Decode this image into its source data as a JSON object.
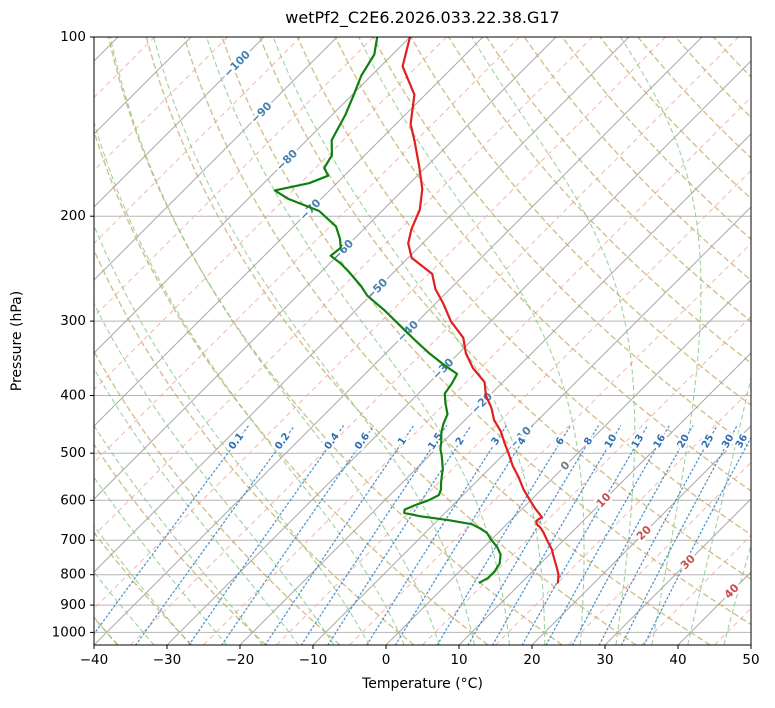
{
  "chart_data": {
    "type": "line",
    "chart_kind": "skew-t-log-p",
    "title": "wetPf2_C2E6.2026.033.22.38.G17",
    "xlabel": "Temperature (°C)",
    "ylabel": "Pressure (hPa)",
    "x_ticks": [
      -40,
      -30,
      -20,
      -10,
      0,
      10,
      20,
      30,
      40,
      50
    ],
    "y_ticks": [
      100,
      200,
      300,
      400,
      500,
      600,
      700,
      800,
      900,
      1000
    ],
    "x_range_bottom_edge_c": [
      -40,
      50
    ],
    "pressure_range_hpa": [
      100,
      1050
    ],
    "skew_degrees": 45,
    "grid": true,
    "series": [
      {
        "name": "temperature",
        "color": "#e01f1f",
        "units": {
          "pressure": "hPa",
          "value": "degC"
        },
        "points": [
          [
            100,
            -80
          ],
          [
            112,
            -77
          ],
          [
            125,
            -71.5
          ],
          [
            140,
            -68
          ],
          [
            150,
            -65
          ],
          [
            165,
            -61
          ],
          [
            180,
            -57.5
          ],
          [
            195,
            -55
          ],
          [
            210,
            -53.5
          ],
          [
            222,
            -52
          ],
          [
            235,
            -49.5
          ],
          [
            250,
            -44.5
          ],
          [
            265,
            -42
          ],
          [
            280,
            -39
          ],
          [
            300,
            -35.5
          ],
          [
            320,
            -31.5
          ],
          [
            340,
            -29
          ],
          [
            360,
            -26
          ],
          [
            380,
            -22.5
          ],
          [
            400,
            -20.5
          ],
          [
            420,
            -18
          ],
          [
            440,
            -16
          ],
          [
            460,
            -13.5
          ],
          [
            480,
            -11.5
          ],
          [
            500,
            -9.5
          ],
          [
            525,
            -7.2
          ],
          [
            550,
            -4.7
          ],
          [
            575,
            -2.5
          ],
          [
            600,
            -0.1
          ],
          [
            620,
            1.8
          ],
          [
            640,
            3.8
          ],
          [
            650,
            3.6
          ],
          [
            658,
            4.1
          ],
          [
            666,
            5.0
          ],
          [
            680,
            6.2
          ],
          [
            700,
            7.7
          ],
          [
            725,
            9.6
          ],
          [
            750,
            11.1
          ],
          [
            775,
            12.6
          ],
          [
            800,
            14.0
          ],
          [
            825,
            15.0
          ]
        ]
      },
      {
        "name": "dewpoint",
        "color": "#0f800f",
        "units": {
          "pressure": "hPa",
          "value": "degC"
        },
        "points": [
          [
            100,
            -84.5
          ],
          [
            107,
            -82.5
          ],
          [
            116,
            -81.4
          ],
          [
            125,
            -79.8
          ],
          [
            135,
            -78.2
          ],
          [
            149,
            -76.6
          ],
          [
            158,
            -74.5
          ],
          [
            166,
            -73.8
          ],
          [
            171,
            -72.2
          ],
          [
            176,
            -73.8
          ],
          [
            181,
            -77.5
          ],
          [
            187,
            -74.5
          ],
          [
            196,
            -68.6
          ],
          [
            208,
            -64.2
          ],
          [
            218,
            -62.0
          ],
          [
            226,
            -60.6
          ],
          [
            233,
            -60.9
          ],
          [
            240,
            -58.5
          ],
          [
            248,
            -56.2
          ],
          [
            262,
            -52.6
          ],
          [
            272,
            -50.4
          ],
          [
            288,
            -46.0
          ],
          [
            305,
            -41.9
          ],
          [
            322,
            -38.0
          ],
          [
            340,
            -34.0
          ],
          [
            356,
            -30.3
          ],
          [
            368,
            -27.4
          ],
          [
            382,
            -26.8
          ],
          [
            397,
            -26.4
          ],
          [
            412,
            -25.0
          ],
          [
            430,
            -23.2
          ],
          [
            447,
            -22.4
          ],
          [
            462,
            -21.5
          ],
          [
            478,
            -20.3
          ],
          [
            492,
            -19.4
          ],
          [
            505,
            -18.3
          ],
          [
            517,
            -17.4
          ],
          [
            532,
            -16.3
          ],
          [
            548,
            -15.4
          ],
          [
            562,
            -14.6
          ],
          [
            575,
            -13.8
          ],
          [
            588,
            -13.3
          ],
          [
            600,
            -14.0
          ],
          [
            612,
            -15.2
          ],
          [
            622,
            -16.0
          ],
          [
            630,
            -15.6
          ],
          [
            638,
            -13.0
          ],
          [
            648,
            -8.5
          ],
          [
            658,
            -4.8
          ],
          [
            668,
            -3.2
          ],
          [
            680,
            -1.6
          ],
          [
            700,
            0.1
          ],
          [
            720,
            1.9
          ],
          [
            740,
            3.3
          ],
          [
            766,
            4.4
          ],
          [
            790,
            4.8
          ],
          [
            810,
            4.8
          ],
          [
            825,
            4.3
          ]
        ]
      }
    ],
    "isotherms": {
      "major_step_c": 10,
      "major_range_c": [
        -120,
        50
      ],
      "color": "#aaaaaa",
      "minor_offset_c": 5,
      "minor_color": "#f4a9a0",
      "labels": [
        {
          "t_c": -100,
          "at_hpa": 111
        },
        {
          "t_c": -90,
          "at_hpa": 134
        },
        {
          "t_c": -80,
          "at_hpa": 161
        },
        {
          "t_c": -70,
          "at_hpa": 195
        },
        {
          "t_c": -60,
          "at_hpa": 228
        },
        {
          "t_c": -50,
          "at_hpa": 265
        },
        {
          "t_c": -40,
          "at_hpa": 312
        },
        {
          "t_c": -30,
          "at_hpa": 361
        },
        {
          "t_c": -20,
          "at_hpa": 412
        },
        {
          "t_c": -10,
          "at_hpa": 470
        },
        {
          "t_c": 0,
          "at_hpa": 525
        },
        {
          "t_c": 10,
          "at_hpa": 600
        },
        {
          "t_c": 20,
          "at_hpa": 681
        },
        {
          "t_c": 30,
          "at_hpa": 762
        },
        {
          "t_c": 40,
          "at_hpa": 853
        }
      ],
      "label_colors": {
        "negative": "#4881ad",
        "zero": "#7a7a7a",
        "positive": "#c94f4f"
      }
    },
    "dry_adiabats": {
      "theta_c_start": -40,
      "theta_c_end": 200,
      "step_c": 10,
      "color": "#c3ab66"
    },
    "moist_adiabats": {
      "t0_c_start": -40,
      "t0_c_end": 45,
      "step_c": 5,
      "color": "#86c586"
    },
    "mixing_ratio_lines": {
      "values_g_kg": [
        0.1,
        0.2,
        0.4,
        0.6,
        1,
        1.5,
        2,
        3,
        4,
        6,
        8,
        10,
        13,
        16,
        20,
        25,
        30,
        36
      ],
      "color": "#3f8ac9",
      "label_color": "#2d6fb2",
      "label_at_hpa": 478,
      "top_hpa": 450
    }
  }
}
